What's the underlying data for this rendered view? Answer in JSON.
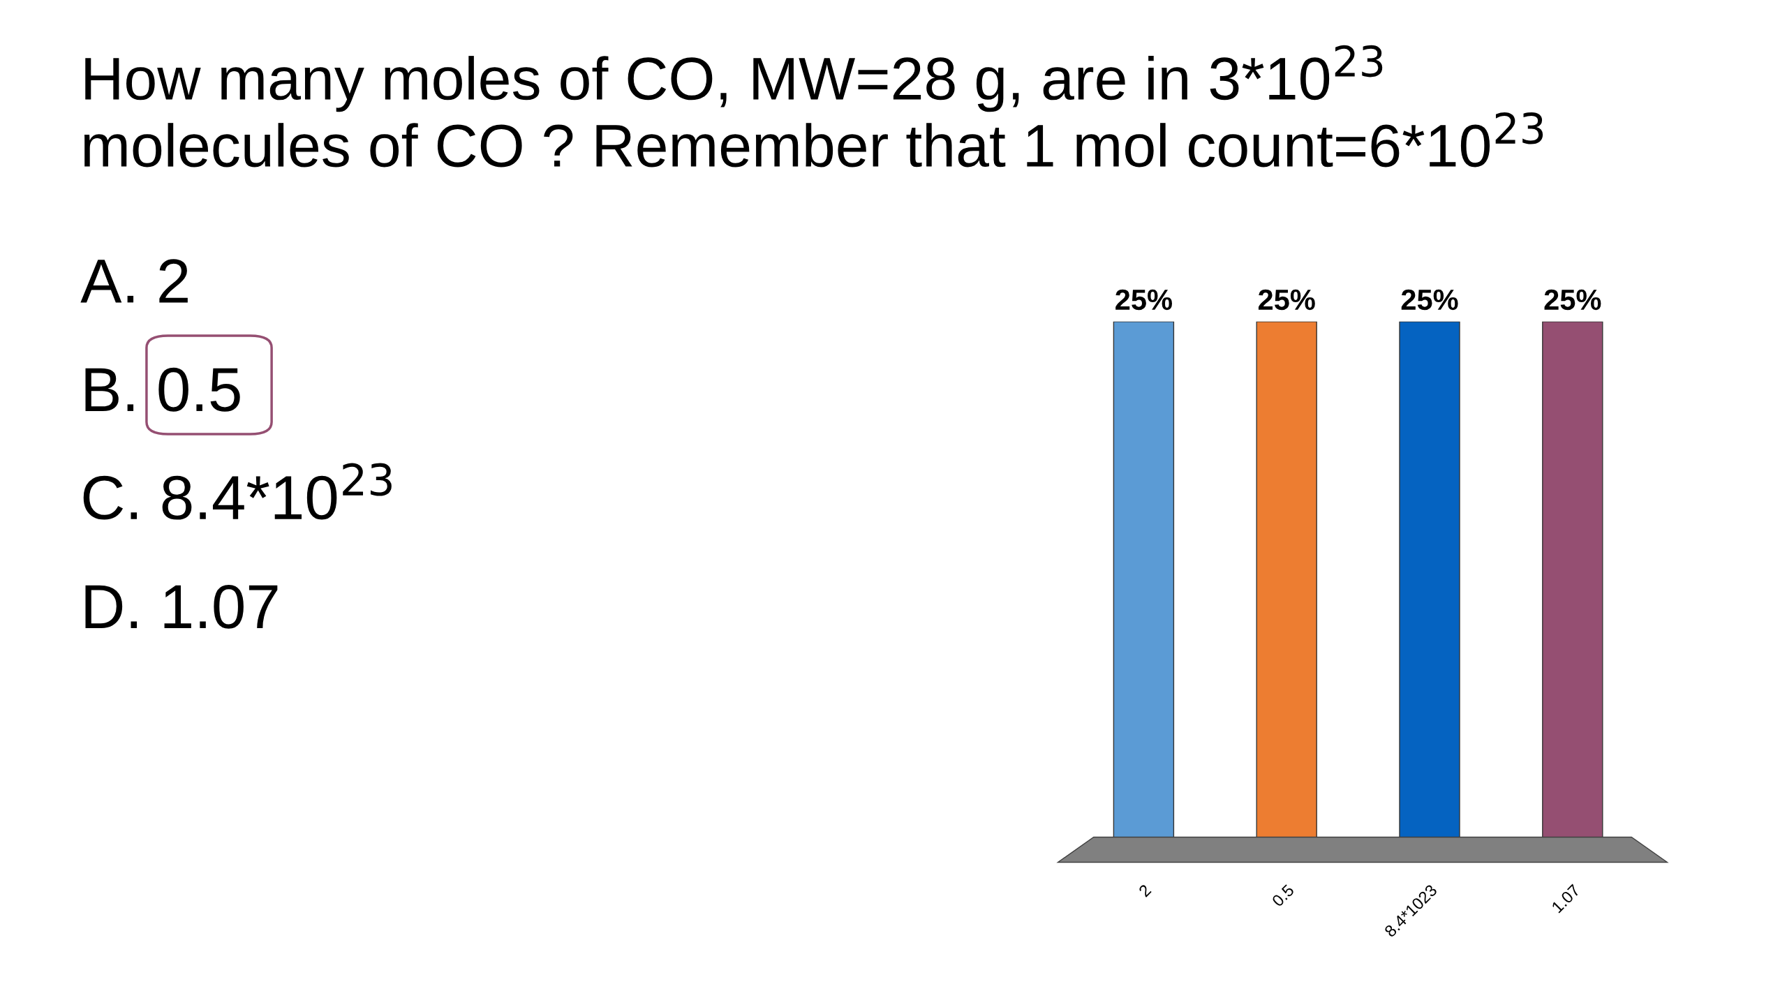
{
  "chart_data": {
    "type": "bar",
    "title": "How many moles of CO, MW=28 g, are in 3*10$^{23}$\nmolecules of CO ? Remember that 1 mol count=6*10$^{23}$",
    "annotations": [
      "A. 2",
      "B. 0.5",
      "C. 8.4*10$^{23}$",
      "D. 1.07"
    ],
    "categories": [
      "2",
      "0.5",
      "8.4*1023",
      "1.07"
    ],
    "values": [
      25,
      25,
      25,
      25
    ],
    "colors": [
      "#5b9bd5",
      "#ed7d31",
      "#0563c1",
      "#954f72"
    ],
    "value_labels": [
      "25%",
      "25%",
      "25%",
      "25%"
    ]
  }
}
